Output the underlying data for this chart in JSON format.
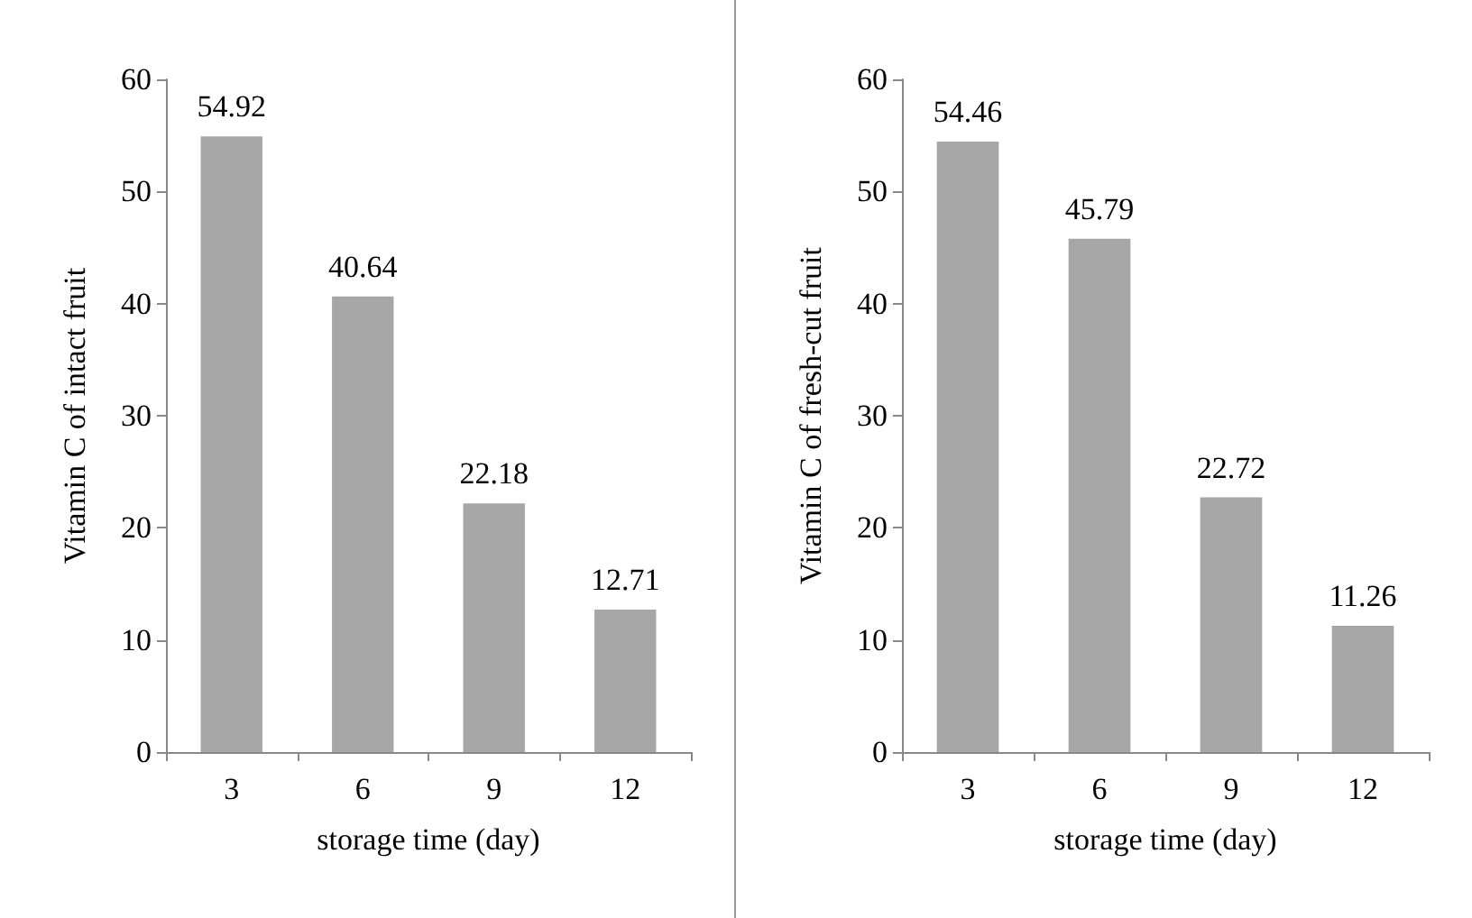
{
  "chart_data": [
    {
      "type": "bar",
      "xlabel": "storage time (day)",
      "ylabel": "Vitamin C of intact fruit",
      "categories": [
        "3",
        "6",
        "9",
        "12"
      ],
      "values": [
        54.92,
        40.64,
        22.18,
        12.71
      ],
      "color": "#a6a6a6",
      "ylim": [
        0,
        60
      ],
      "yticks": [
        0,
        10,
        20,
        30,
        40,
        50,
        60
      ],
      "grid": false,
      "data_labels": true
    },
    {
      "type": "bar",
      "xlabel": "storage time (day)",
      "ylabel": "Vitamin C of fresh-cut fruit",
      "categories": [
        "3",
        "6",
        "9",
        "12"
      ],
      "values": [
        54.46,
        45.79,
        22.72,
        11.26
      ],
      "color": "#a6a6a6",
      "ylim": [
        0,
        60
      ],
      "yticks": [
        0,
        10,
        20,
        30,
        40,
        50,
        60
      ],
      "grid": false,
      "data_labels": true
    }
  ]
}
